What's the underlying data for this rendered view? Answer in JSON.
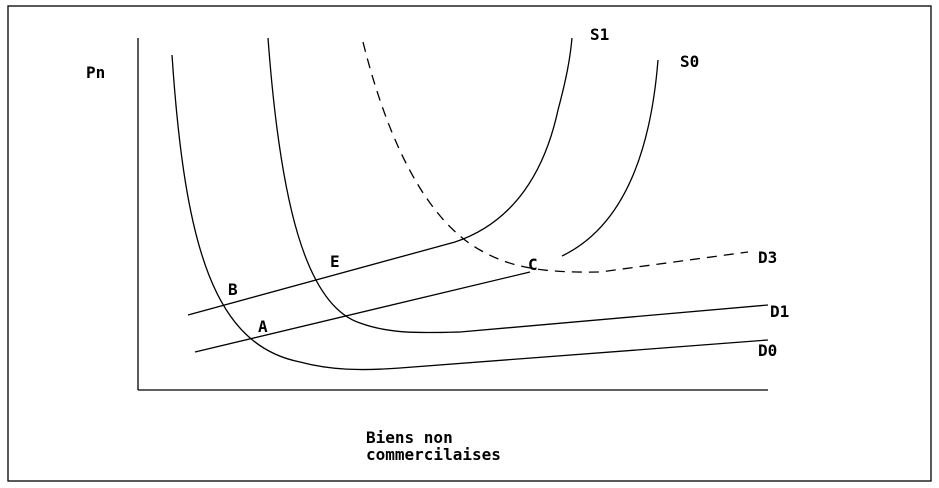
{
  "axes": {
    "y_label": "Pn",
    "x_label": [
      "Biens non",
      "commercilaises"
    ]
  },
  "curves": [
    {
      "label": "S1"
    },
    {
      "label": "S0"
    },
    {
      "label": "D3"
    },
    {
      "label": "D1"
    },
    {
      "label": "D0"
    }
  ],
  "points": [
    {
      "label": "B"
    },
    {
      "label": "E"
    },
    {
      "label": "A"
    },
    {
      "label": "C"
    }
  ]
}
